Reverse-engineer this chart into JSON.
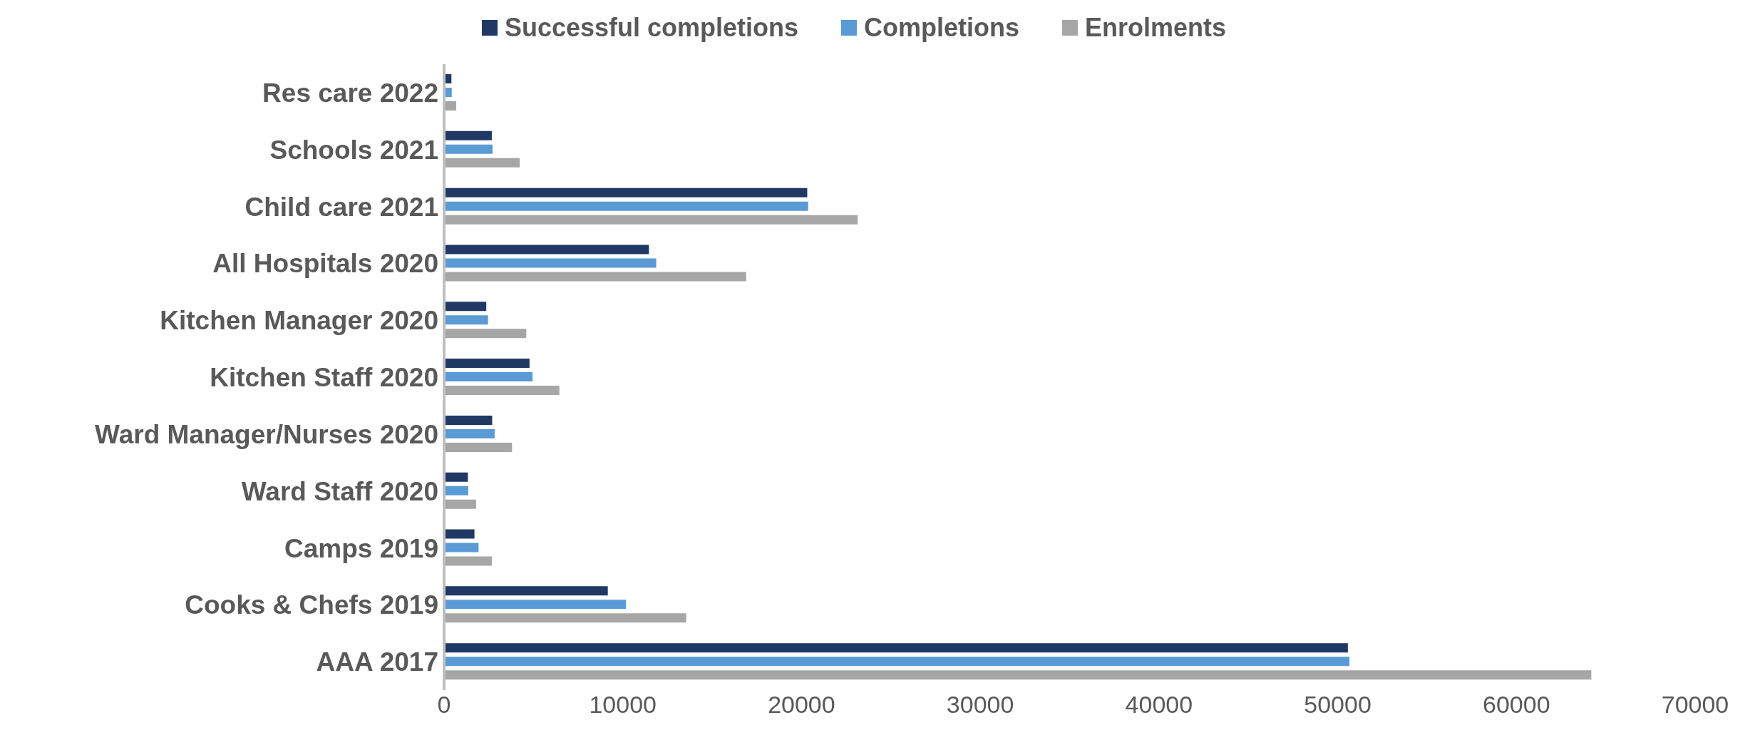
{
  "chart_data": {
    "type": "bar",
    "orientation": "horizontal",
    "categories": [
      "Res care 2022",
      "Schools 2021",
      "Child care 2021",
      "All Hospitals 2020",
      "Kitchen Manager 2020",
      "Kitchen Staff 2020",
      "Ward Manager/Nurses 2020",
      "Ward Staff 2020",
      "Camps 2019",
      "Cooks & Chefs 2019",
      "AAA 2017"
    ],
    "series": [
      {
        "name": "Successful completions",
        "color": "#203864",
        "values": [
          410,
          2670,
          20320,
          11460,
          2360,
          4780,
          2690,
          1330,
          1700,
          9160,
          50570
        ]
      },
      {
        "name": "Completions",
        "color": "#5b9bd5",
        "values": [
          430,
          2710,
          20370,
          11870,
          2460,
          4950,
          2830,
          1350,
          1930,
          10180,
          50660
        ]
      },
      {
        "name": "Enrolments",
        "color": "#a6a6a6",
        "values": [
          680,
          4230,
          23140,
          16900,
          4600,
          6450,
          3800,
          1790,
          2670,
          13550,
          64190
        ]
      }
    ],
    "xlim": [
      0,
      70000
    ],
    "xticks": [
      0,
      10000,
      20000,
      30000,
      40000,
      50000,
      60000,
      70000
    ],
    "grid": false,
    "legend": "top"
  }
}
